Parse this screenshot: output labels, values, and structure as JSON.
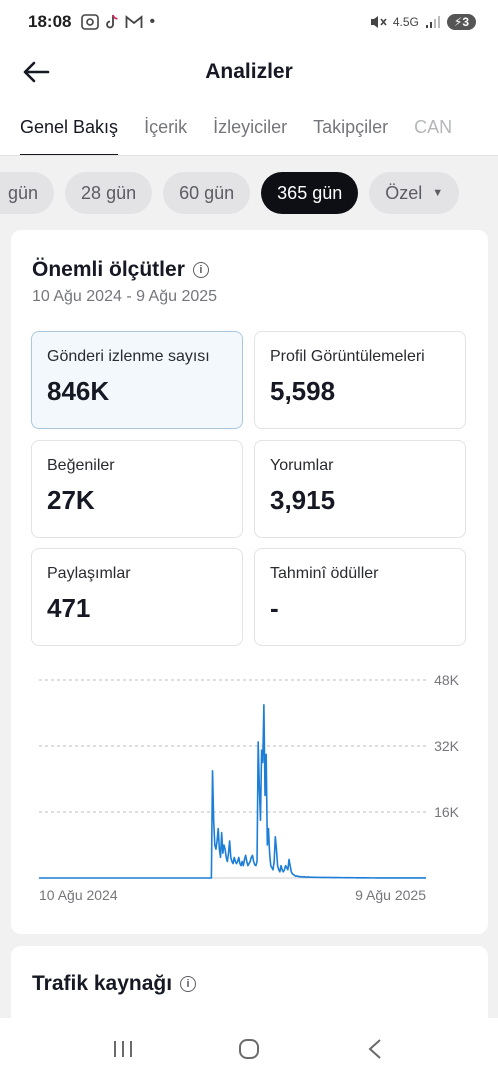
{
  "status": {
    "time": "18:08",
    "network": "4.5G",
    "battery": "3"
  },
  "header": {
    "title": "Analizler"
  },
  "tabs": [
    {
      "label": "Genel Bakış",
      "active": true
    },
    {
      "label": "İçerik",
      "active": false
    },
    {
      "label": "İzleyiciler",
      "active": false
    },
    {
      "label": "Takipçiler",
      "active": false
    },
    {
      "label": "CAN",
      "active": false
    }
  ],
  "ranges": [
    {
      "label": "gün",
      "active": false
    },
    {
      "label": "28 gün",
      "active": false
    },
    {
      "label": "60 gün",
      "active": false
    },
    {
      "label": "365 gün",
      "active": true
    },
    {
      "label": "Özel",
      "active": false
    }
  ],
  "key_metrics": {
    "title": "Önemli ölçütler",
    "date_range": "10 Ağu 2024 - 9 Ağu 2025",
    "metrics": [
      {
        "label": "Gönderi izlenme sayısı",
        "value": "846K"
      },
      {
        "label": "Profil Görüntülemeleri",
        "value": "5,598"
      },
      {
        "label": "Beğeniler",
        "value": "27K"
      },
      {
        "label": "Yorumlar",
        "value": "3,915"
      },
      {
        "label": "Paylaşımlar",
        "value": "471"
      },
      {
        "label": "Tahminî ödüller",
        "value": "-"
      }
    ]
  },
  "chart_data": {
    "type": "line",
    "x_start_label": "10 Ağu 2024",
    "x_end_label": "9 Ağu 2025",
    "ylim": [
      0,
      48000
    ],
    "y_ticks": [
      "16K",
      "32K",
      "48K"
    ],
    "y_tick_values": [
      16000,
      32000,
      48000
    ],
    "color": "#1c7ed6",
    "series": [
      {
        "values": [
          0,
          0,
          0,
          0,
          0,
          0,
          0,
          0,
          0,
          0,
          0,
          0,
          0,
          0,
          0,
          0,
          0,
          0,
          0,
          0,
          0,
          0,
          0,
          0,
          0,
          0,
          0,
          0,
          0,
          0,
          0,
          0,
          0,
          0,
          0,
          0,
          0,
          0,
          0,
          0,
          0,
          0,
          0,
          0,
          0,
          0,
          0,
          0,
          0,
          0,
          0,
          0,
          0,
          0,
          0,
          0,
          0,
          0,
          0,
          0,
          0,
          0,
          0,
          0,
          0,
          0,
          0,
          0,
          0,
          0,
          0,
          0,
          0,
          0,
          0,
          0,
          0,
          0,
          0,
          0,
          0,
          0,
          0,
          0,
          0,
          0,
          0,
          0,
          0,
          0,
          0,
          0,
          0,
          0,
          0,
          0,
          0,
          0,
          0,
          0,
          0,
          0,
          0,
          0,
          0,
          0,
          0,
          0,
          0,
          0,
          0,
          0,
          0,
          0,
          0,
          0,
          0,
          0,
          0,
          0,
          0,
          0,
          0,
          0,
          0,
          0,
          0,
          0,
          0,
          0,
          0,
          0,
          0,
          0,
          0,
          0,
          0,
          0,
          0,
          0,
          0,
          0,
          0,
          0,
          0,
          0,
          0,
          0,
          0,
          0,
          0,
          0,
          26000,
          14000,
          8000,
          7000,
          9000,
          12000,
          7000,
          5000,
          11000,
          6000,
          8000,
          7000,
          5000,
          4000,
          6000,
          9000,
          5000,
          4000,
          3500,
          5000,
          4000,
          3500,
          4000,
          5000,
          3500,
          3000,
          4000,
          3000,
          4500,
          5500,
          4000,
          3000,
          3500,
          4000,
          5000,
          5500,
          4000,
          3200,
          3000,
          4000,
          33000,
          22000,
          14000,
          31000,
          28000,
          42000,
          20000,
          30000,
          8000,
          12000,
          6000,
          3000,
          2500,
          2000,
          4000,
          10000,
          7000,
          3000,
          2000,
          1500,
          3000,
          2000,
          1500,
          2000,
          3000,
          2500,
          2000,
          4500,
          3000,
          1500,
          1000,
          800,
          600,
          400,
          500,
          400,
          300,
          350,
          300,
          250,
          300,
          250,
          200,
          220,
          250,
          200,
          180,
          200,
          180,
          160,
          180,
          160,
          150,
          160,
          150,
          140,
          150,
          140,
          130,
          140,
          130,
          120,
          130,
          120,
          110,
          120,
          110,
          100,
          110,
          100,
          100,
          90,
          100,
          90,
          90,
          80,
          90,
          80,
          80,
          70,
          70,
          70,
          60,
          70,
          60,
          60,
          50,
          60,
          50,
          50,
          50,
          40,
          50,
          40,
          40,
          40,
          30,
          40,
          30,
          30,
          30,
          30,
          30,
          20,
          30,
          20,
          20,
          20,
          20,
          20,
          20,
          20,
          20,
          20,
          20,
          20,
          20,
          20,
          20,
          20,
          20,
          20,
          20,
          20,
          20,
          20,
          20,
          20,
          20,
          20,
          20,
          20,
          20,
          20,
          20,
          20,
          20,
          20,
          20,
          20,
          20,
          20,
          20,
          20,
          20,
          20,
          20,
          20
        ]
      }
    ]
  },
  "traffic": {
    "title": "Trafik kaynağı"
  }
}
